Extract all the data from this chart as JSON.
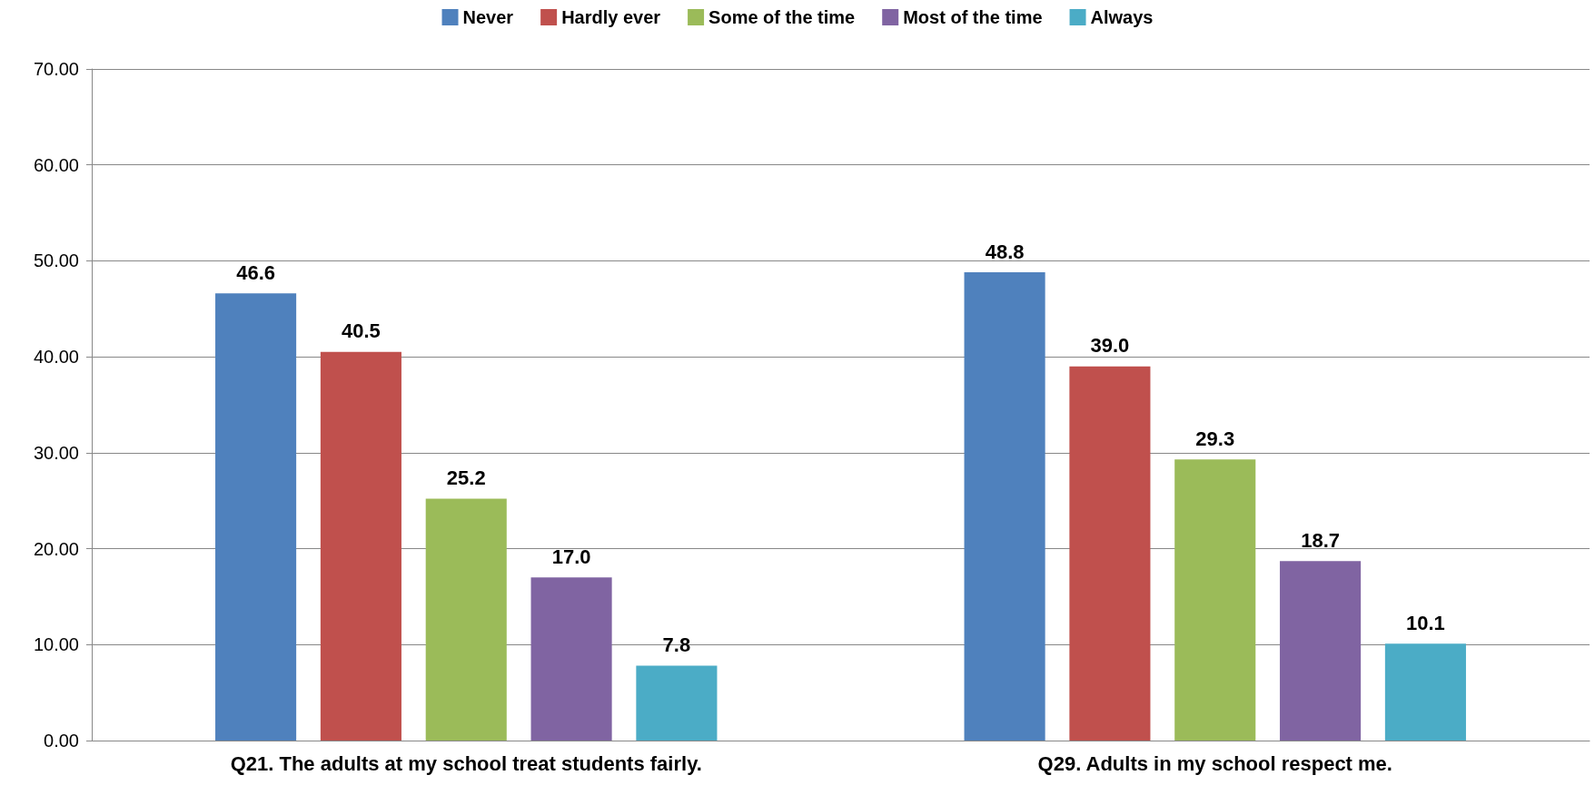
{
  "chart_data": {
    "type": "bar",
    "categories": [
      "Q21. The adults at my school treat students fairly.",
      "Q29. Adults in my school respect me."
    ],
    "series": [
      {
        "name": "Never",
        "color": "#4f81bd",
        "values": [
          46.6,
          48.8
        ],
        "value_labels": [
          "46.6",
          "48.8"
        ]
      },
      {
        "name": "Hardly ever",
        "color": "#c0504d",
        "values": [
          40.5,
          39.0
        ],
        "value_labels": [
          "40.5",
          "39.0"
        ]
      },
      {
        "name": "Some of the time",
        "color": "#9bbb59",
        "values": [
          25.2,
          29.3
        ],
        "value_labels": [
          "25.2",
          "29.3"
        ]
      },
      {
        "name": "Most of the time",
        "color": "#8064a2",
        "values": [
          17.0,
          18.7
        ],
        "value_labels": [
          "17.0",
          "18.7"
        ]
      },
      {
        "name": "Always",
        "color": "#4bacc6",
        "values": [
          7.8,
          10.1
        ],
        "value_labels": [
          "7.8",
          "10.1"
        ]
      }
    ],
    "ylim": [
      0,
      70
    ],
    "yticks": [
      {
        "value": 0,
        "label": "0.00"
      },
      {
        "value": 10,
        "label": "10.00"
      },
      {
        "value": 20,
        "label": "20.00"
      },
      {
        "value": 30,
        "label": "30.00"
      },
      {
        "value": 40,
        "label": "40.00"
      },
      {
        "value": 50,
        "label": "50.00"
      },
      {
        "value": 60,
        "label": "60.00"
      },
      {
        "value": 70,
        "label": "70.00"
      }
    ],
    "grid": "y",
    "legend": "top"
  }
}
